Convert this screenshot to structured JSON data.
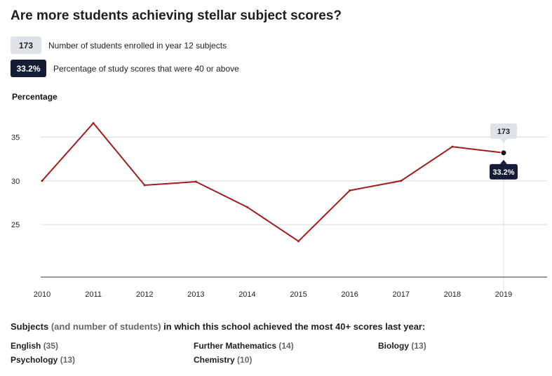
{
  "title": "Are more students achieving stellar subject scores?",
  "legend": {
    "count_badge": "173",
    "count_text": "Number of students enrolled in year 12 subjects",
    "pct_badge": "33.2%",
    "pct_text": "Percentage of study scores that were 40 or above"
  },
  "colors": {
    "line": "#a31c1c",
    "badge_light": "#dfe2e7",
    "badge_dark": "#141c38",
    "grid": "#d9d9d9"
  },
  "chart_data": {
    "type": "line",
    "ylabel": "Percentage",
    "x": [
      "2010",
      "2011",
      "2012",
      "2013",
      "2014",
      "2015",
      "2016",
      "2017",
      "2018",
      "2019"
    ],
    "series": [
      {
        "values": [
          30.0,
          36.6,
          29.5,
          29.9,
          27.0,
          23.1,
          28.9,
          30.0,
          33.9,
          33.2
        ]
      }
    ],
    "yticks": [
      25,
      30,
      35
    ],
    "ylim": [
      19,
      38
    ],
    "grid": true,
    "highlight": {
      "x": "2019",
      "value_label": "33.2%",
      "count_label": "173"
    }
  },
  "subjects": {
    "heading_main": "Subjects",
    "heading_paren": "(and number of students)",
    "heading_rest": "in which this school achieved the most 40+ scores last year:",
    "items": [
      {
        "name": "English",
        "count": "(35)"
      },
      {
        "name": "Further Mathematics",
        "count": "(14)"
      },
      {
        "name": "Biology",
        "count": "(13)"
      },
      {
        "name": "Psychology",
        "count": "(13)"
      },
      {
        "name": "Chemistry",
        "count": "(10)"
      }
    ]
  }
}
